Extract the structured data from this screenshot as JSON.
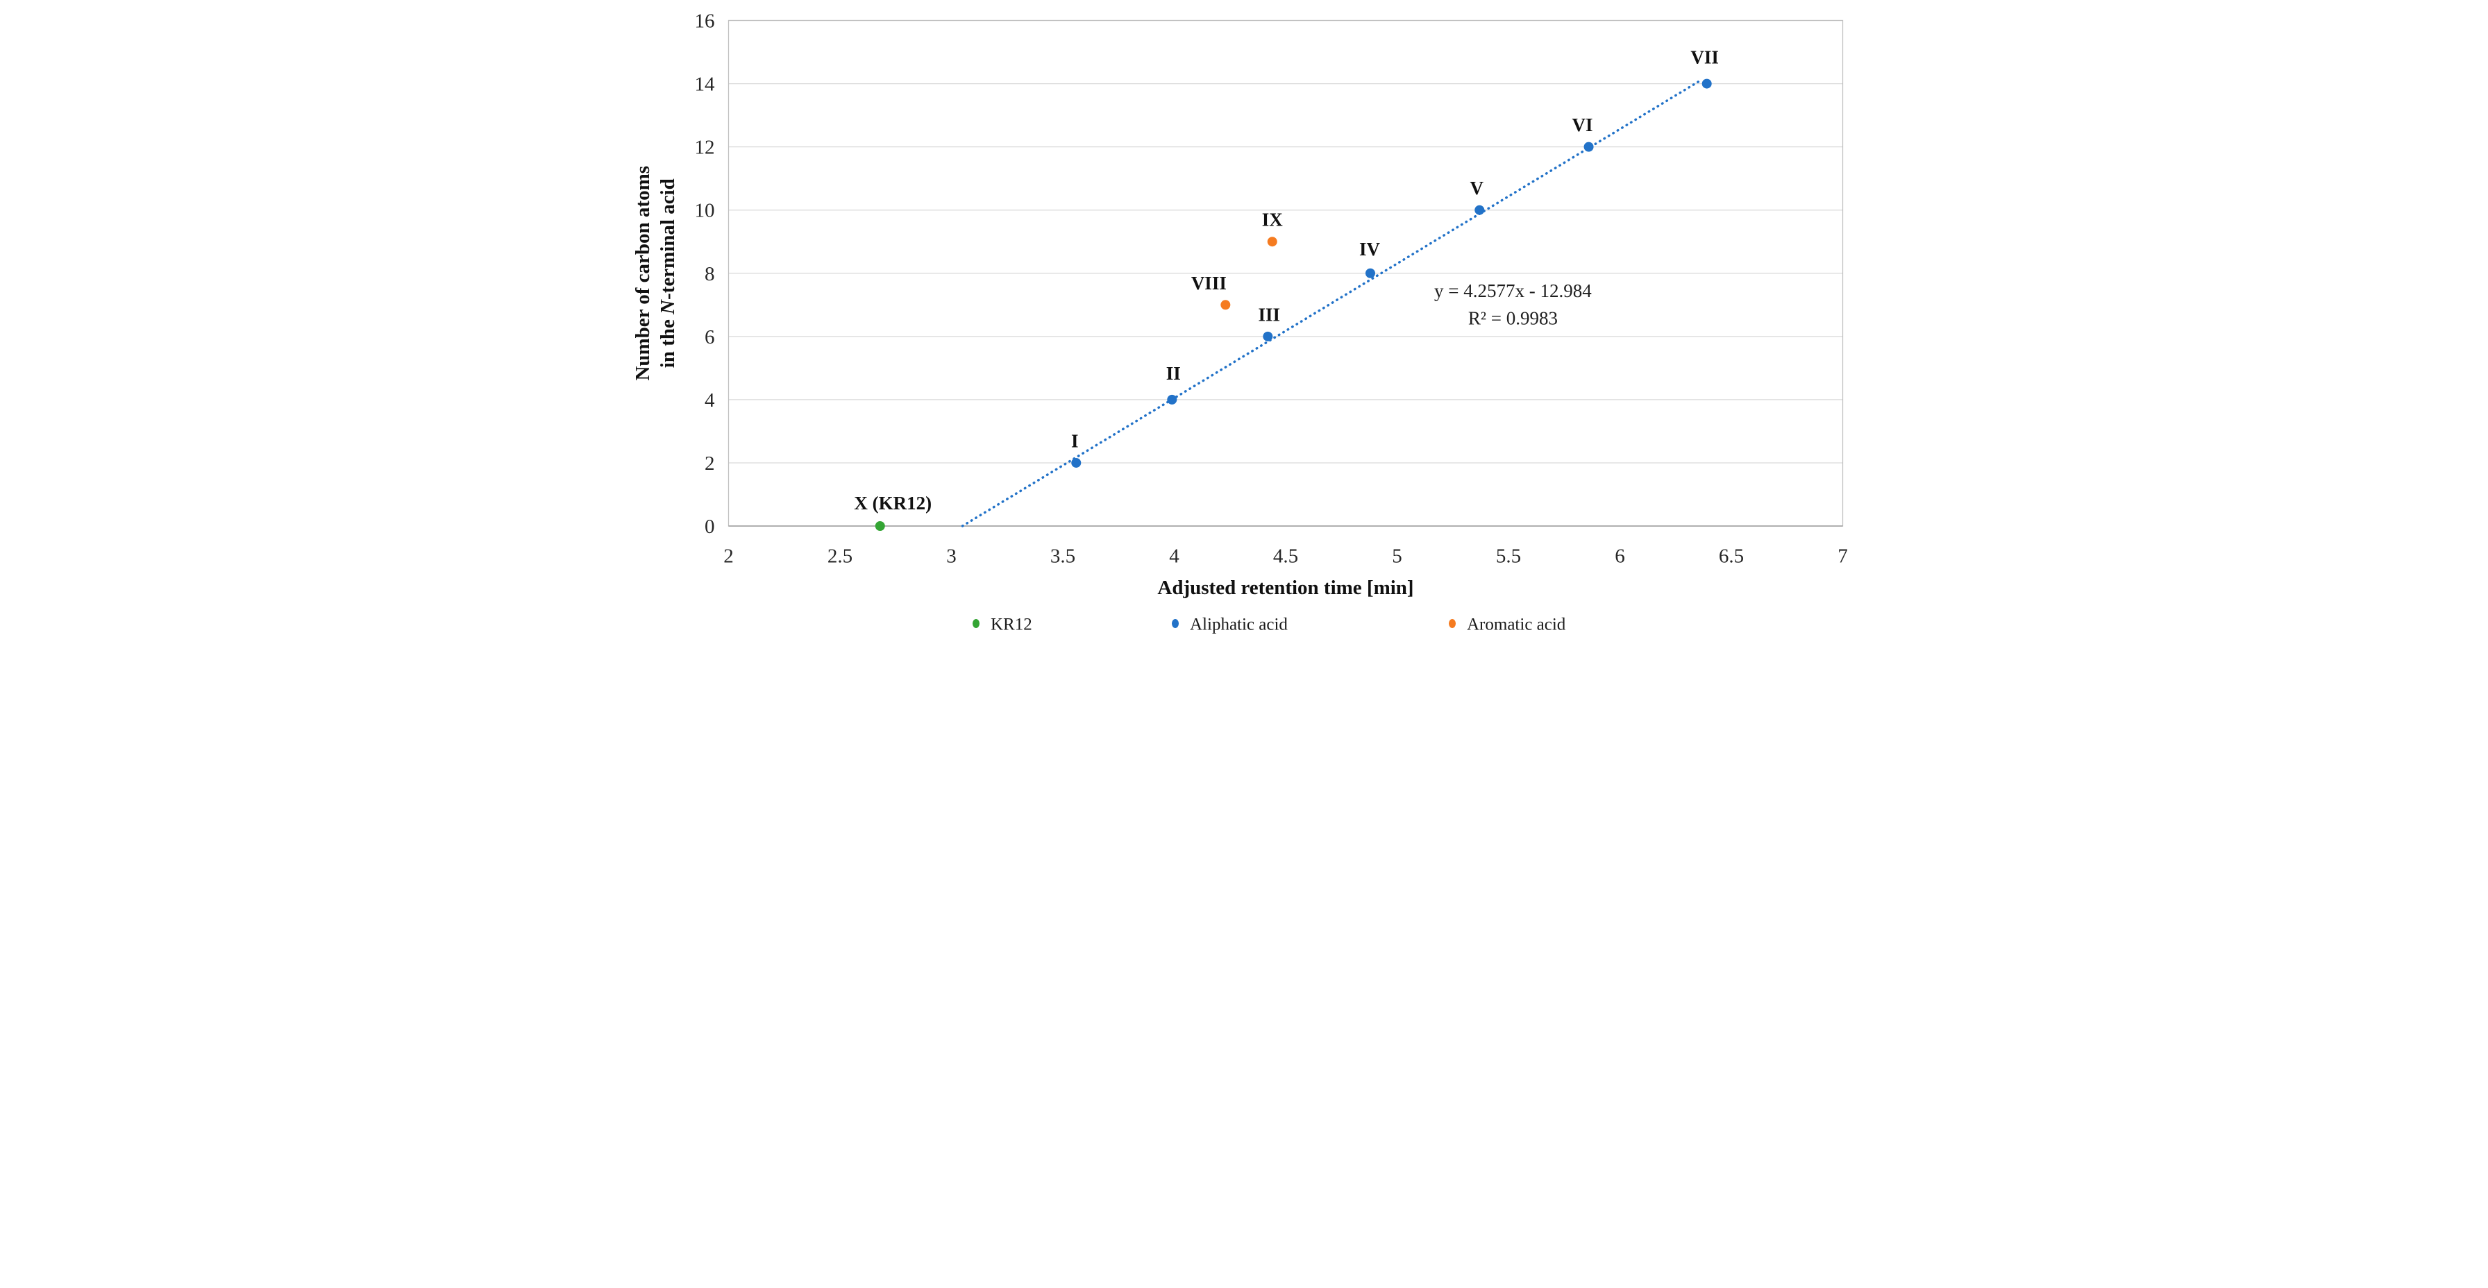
{
  "figure": {
    "background": "#ffffff",
    "gridline_color": "#d9d9d9",
    "border_color": "#c0c0c0",
    "axis_line_color": "#9a9a9a",
    "text_color": "#1a1a1a"
  },
  "chart_data": {
    "type": "scatter",
    "title": "",
    "xlabel": "Adjusted retention time [min]",
    "ylabel": "Number of carbon atoms in the N-terminal acid",
    "ylabel_lines": [
      {
        "pre": "Number of carbon atoms",
        "italic": "",
        "post": ""
      },
      {
        "pre": "in the ",
        "italic": "N",
        "post": "-terminal acid"
      }
    ],
    "xlim": [
      2,
      7
    ],
    "ylim": [
      0,
      16
    ],
    "xticks": [
      "2",
      "2.5",
      "3",
      "3.5",
      "4",
      "4.5",
      "5",
      "5.5",
      "6",
      "6.5",
      "7"
    ],
    "yticks": [
      "0",
      "2",
      "4",
      "6",
      "8",
      "10",
      "12",
      "14",
      "16"
    ],
    "grid": "horizontal",
    "legend_position": "bottom",
    "series": [
      {
        "name": "KR12",
        "color": "#34a534",
        "points": [
          {
            "label": "X (KR12)",
            "x": 2.68,
            "y": 0,
            "label_dx": 37,
            "label_dy": -48
          }
        ]
      },
      {
        "name": "Aliphatic acid",
        "color": "#2272c8",
        "points": [
          {
            "label": "I",
            "x": 3.56,
            "y": 2,
            "label_dx": -4
          },
          {
            "label": "II",
            "x": 3.99,
            "y": 4,
            "label_dx": 4,
            "label_dy": -58
          },
          {
            "label": "III",
            "x": 4.42,
            "y": 6,
            "label_dx": 4
          },
          {
            "label": "IV",
            "x": 4.88,
            "y": 8,
            "label_dx": -2,
            "label_dy": -52
          },
          {
            "label": "V",
            "x": 5.37,
            "y": 10,
            "label_dx": -8
          },
          {
            "label": "VI",
            "x": 5.86,
            "y": 12,
            "label_dx": -18
          },
          {
            "label": "VII",
            "x": 6.39,
            "y": 14,
            "label_dx": -6,
            "label_dy": -58
          }
        ]
      },
      {
        "name": "Aromatic acid",
        "color": "#f57b20",
        "points": [
          {
            "label": "VIII",
            "x": 4.23,
            "y": 7,
            "label_dx": -48
          },
          {
            "label": "IX",
            "x": 4.44,
            "y": 9,
            "label_dx": 0
          }
        ]
      }
    ],
    "trendline": {
      "equation": "y = 4.2577x - 12.984",
      "r_squared_label": "R² = 0.9983",
      "slope": 4.2577,
      "intercept": -12.984,
      "x_start": 3.05,
      "x_end": 6.37,
      "style": "dotted",
      "color": "#2272c8",
      "annotation_x": 5.52,
      "annotation_y_line1": 7.25,
      "annotation_y_line2": 6.38
    }
  }
}
